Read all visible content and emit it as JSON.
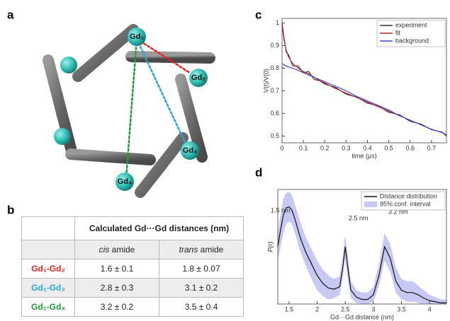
{
  "panel_labels": [
    "a",
    "b",
    "c",
    "d"
  ],
  "diagram": {
    "nodes": [
      {
        "label": "Gd₁"
      },
      {
        "label": "Gd₂"
      },
      {
        "label": "Gd₃"
      },
      {
        "label": "Gd₄"
      }
    ]
  },
  "table": {
    "header": "Calculated Gd···Gd distances (nm)",
    "subheader": [
      [
        "cis",
        "amide"
      ],
      [
        "trans",
        "amide"
      ]
    ],
    "rows": [
      [
        "Gd₁-Gd₂",
        "1.6 ± 0.1",
        "1.8 ± 0.07"
      ],
      [
        "Gd₁-Gd₃",
        "2.8 ± 0.3",
        "3.1 ± 0.2"
      ],
      [
        "Gd₁-Gd₄",
        "3.2 ± 0.2",
        "3.5 ± 0.4"
      ]
    ],
    "row_colors": [
      "#e8231f",
      "#22a7d8",
      "#1f9e3a"
    ]
  },
  "chart_data": [
    {
      "type": "line",
      "xlabel": "time (μs)",
      "ylabel": "V(t)/V(0)",
      "x": [
        0,
        0.01,
        0.02,
        0.03,
        0.05,
        0.075,
        0.1,
        0.125,
        0.15,
        0.175,
        0.2,
        0.25,
        0.3,
        0.35,
        0.4,
        0.45,
        0.5,
        0.55,
        0.6,
        0.65,
        0.7,
        0.75,
        0.77
      ],
      "series": [
        {
          "name": "experiment",
          "color": "#333333",
          "values": [
            1.0,
            0.93,
            0.87,
            0.86,
            0.81,
            0.81,
            0.78,
            0.785,
            0.75,
            0.745,
            0.73,
            0.715,
            0.685,
            0.672,
            0.645,
            0.633,
            0.605,
            0.594,
            0.565,
            0.553,
            0.528,
            0.517,
            0.5
          ]
        },
        {
          "name": "fit",
          "color": "#c0262b",
          "values": [
            0.99,
            0.92,
            0.88,
            0.85,
            0.82,
            0.8,
            0.785,
            0.775,
            0.76,
            0.745,
            0.735,
            0.71,
            0.69,
            0.67,
            0.65,
            0.63,
            0.61,
            0.59,
            0.57,
            0.55,
            0.53,
            0.515,
            0.505
          ]
        },
        {
          "name": "background",
          "color": "#3a48c4",
          "values": [
            0.82,
            0.815,
            0.81,
            0.805,
            0.8,
            0.79,
            0.78,
            0.77,
            0.76,
            0.75,
            0.74,
            0.72,
            0.7,
            0.675,
            0.655,
            0.635,
            0.615,
            0.59,
            0.57,
            0.55,
            0.53,
            0.515,
            0.505
          ]
        }
      ],
      "xlim": [
        0,
        0.77
      ],
      "ylim": [
        0.47,
        1.02
      ],
      "xticks": [
        0,
        0.1,
        0.2,
        0.3,
        0.4,
        0.5,
        0.6,
        0.7
      ],
      "yticks": [
        0.5,
        0.6,
        0.7,
        0.8,
        0.9,
        1
      ],
      "legend": "upper right"
    },
    {
      "type": "line",
      "xlabel": "Gd···Gd distance (nm)",
      "ylabel": "P(r)",
      "x": [
        1.3,
        1.35,
        1.4,
        1.45,
        1.5,
        1.55,
        1.6,
        1.7,
        1.8,
        1.9,
        2.0,
        2.1,
        2.2,
        2.3,
        2.4,
        2.45,
        2.5,
        2.55,
        2.6,
        2.7,
        2.8,
        2.9,
        3.0,
        3.1,
        3.2,
        3.3,
        3.4,
        3.5,
        3.6,
        3.7,
        3.8,
        3.9,
        4.0,
        4.1,
        4.2,
        4.3
      ],
      "series": [
        {
          "name": "Distance distribution",
          "color": "#111111",
          "values": [
            0.5,
            0.65,
            0.78,
            0.84,
            0.85,
            0.82,
            0.75,
            0.58,
            0.45,
            0.35,
            0.25,
            0.18,
            0.14,
            0.13,
            0.15,
            0.3,
            0.5,
            0.3,
            0.12,
            0.06,
            0.04,
            0.04,
            0.08,
            0.25,
            0.5,
            0.4,
            0.2,
            0.12,
            0.1,
            0.1,
            0.08,
            0.05,
            0.03,
            0.02,
            0.01,
            0.01
          ]
        },
        {
          "name": "95% conf. interval",
          "color": "#c8c8f4",
          "lower": [
            0.38,
            0.5,
            0.62,
            0.7,
            0.72,
            0.7,
            0.63,
            0.46,
            0.33,
            0.22,
            0.12,
            0.07,
            0.04,
            0.05,
            0.08,
            0.2,
            0.4,
            0.2,
            0.05,
            0.01,
            0,
            0,
            0.02,
            0.16,
            0.38,
            0.28,
            0.1,
            0.04,
            0.02,
            0.02,
            0.01,
            0,
            0,
            0,
            0,
            0
          ],
          "upper": [
            0.62,
            0.78,
            0.92,
            0.97,
            0.98,
            0.95,
            0.88,
            0.72,
            0.58,
            0.48,
            0.38,
            0.3,
            0.25,
            0.22,
            0.24,
            0.4,
            0.6,
            0.4,
            0.2,
            0.12,
            0.1,
            0.1,
            0.15,
            0.35,
            0.62,
            0.52,
            0.32,
            0.22,
            0.2,
            0.2,
            0.16,
            0.12,
            0.08,
            0.06,
            0.04,
            0.04
          ]
        }
      ],
      "annotations": [
        "1.5 nm",
        "2.5 nm",
        "3.2 nm"
      ],
      "xlim": [
        1.3,
        4.3
      ],
      "ylim": [
        0,
        1
      ],
      "xticks": [
        1.5,
        2,
        2.5,
        3,
        3.5,
        4
      ],
      "legend": "upper right"
    }
  ]
}
